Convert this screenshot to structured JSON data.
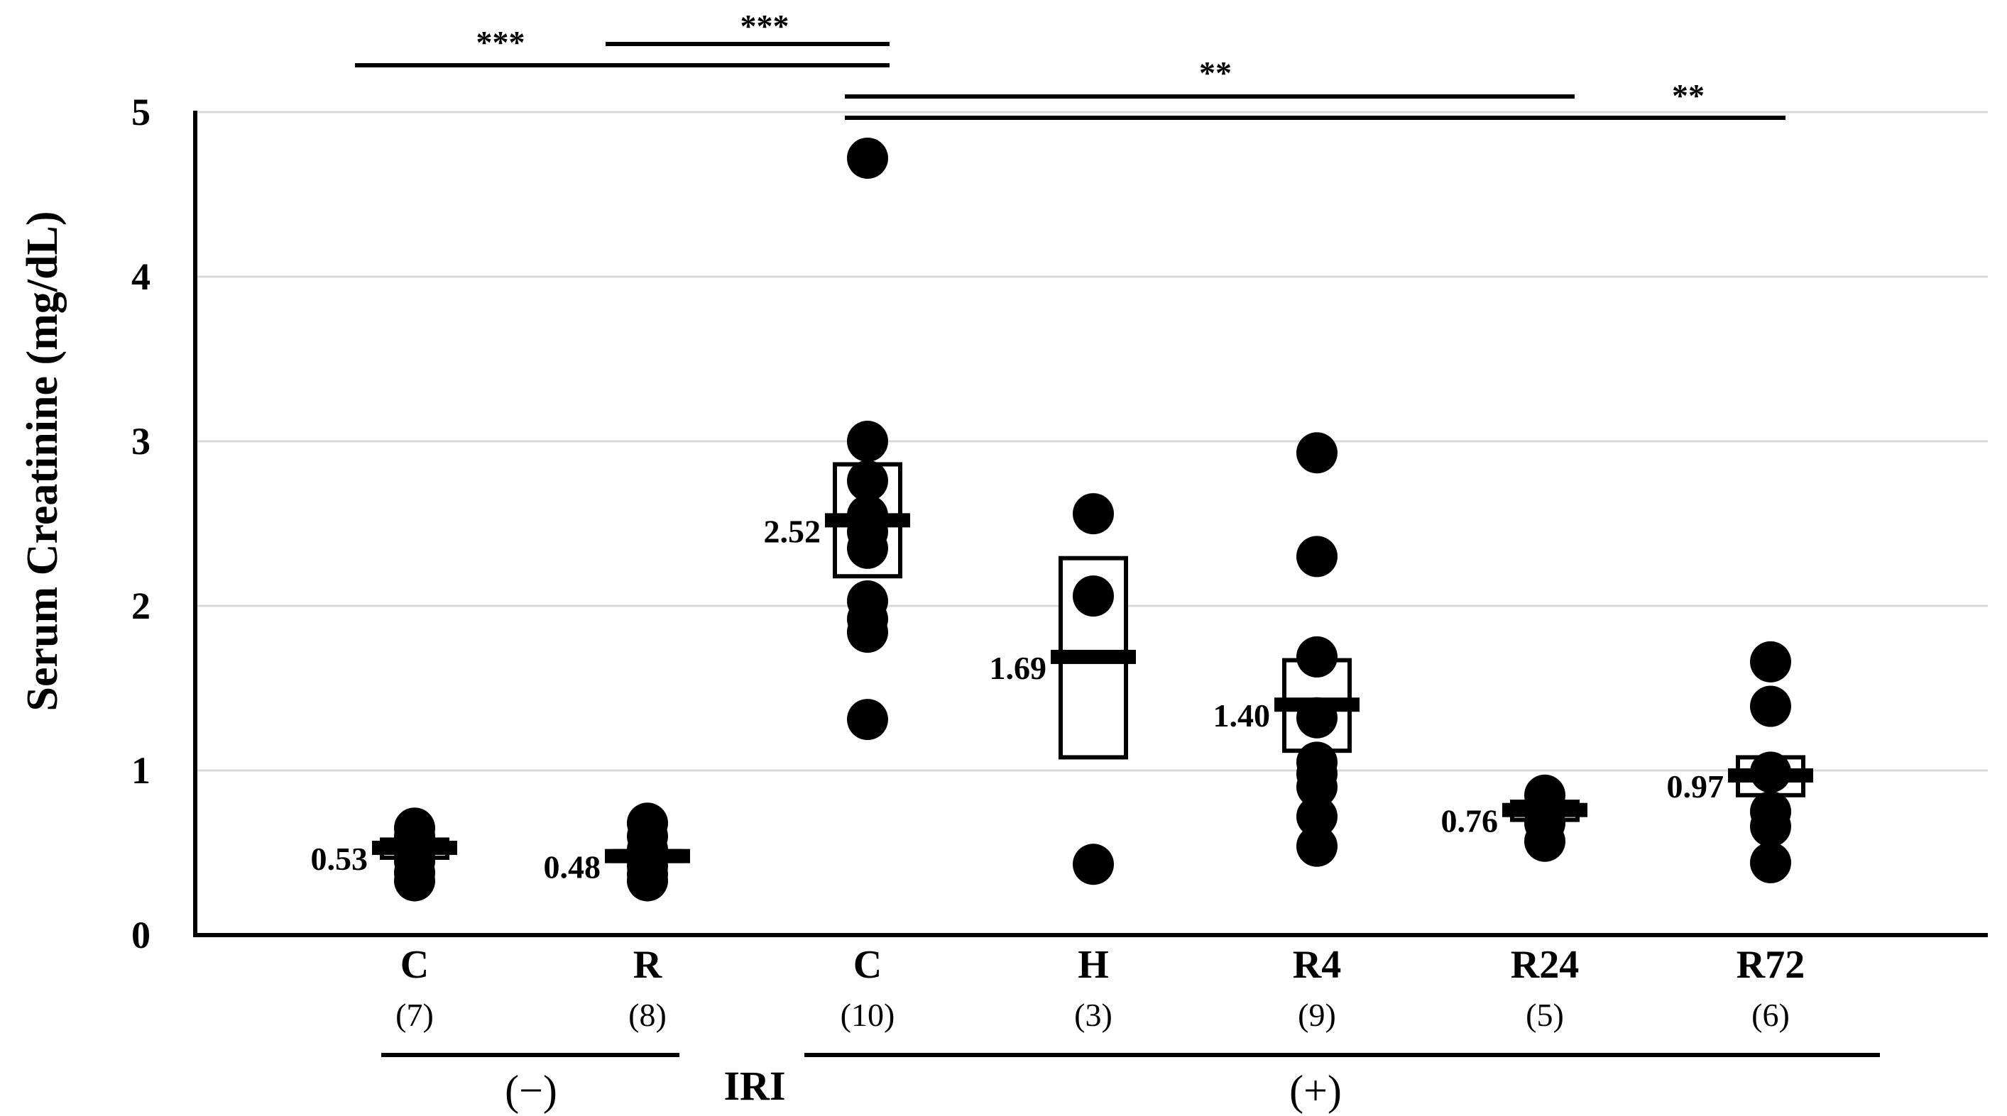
{
  "chart_data": {
    "type": "scatter",
    "title": "",
    "ylabel": "Serum Creatinine (mg/dL)",
    "xlabel": "IRI",
    "ylim": [
      0,
      5
    ],
    "yticks": [
      0,
      1,
      2,
      3,
      4,
      5
    ],
    "grid": "horizontal",
    "categories": [
      {
        "label": "C",
        "n": "(7)",
        "mean": 0.53,
        "mean_label": "0.53",
        "box": [
          0.47,
          0.58
        ],
        "points": [
          0.33,
          0.38,
          0.45,
          0.5,
          0.55,
          0.6,
          0.65
        ]
      },
      {
        "label": "R",
        "n": "(8)",
        "mean": 0.48,
        "mean_label": "0.48",
        "box": [
          0.45,
          0.51
        ],
        "points": [
          0.33,
          0.37,
          0.42,
          0.46,
          0.49,
          0.52,
          0.6,
          0.68
        ]
      },
      {
        "label": "C",
        "n": "(10)",
        "mean": 2.52,
        "mean_label": "2.52",
        "box": [
          2.18,
          2.86
        ],
        "points": [
          1.31,
          1.84,
          1.92,
          2.03,
          2.35,
          2.45,
          2.55,
          2.76,
          3.0,
          4.72
        ]
      },
      {
        "label": "H",
        "n": "(3)",
        "mean": 1.69,
        "mean_label": "1.69",
        "box": [
          1.08,
          2.29
        ],
        "points": [
          0.43,
          2.06,
          2.56
        ]
      },
      {
        "label": "R4",
        "n": "(9)",
        "mean": 1.4,
        "mean_label": "1.40",
        "box": [
          1.12,
          1.67
        ],
        "points": [
          0.54,
          0.72,
          0.9,
          0.98,
          1.05,
          1.32,
          1.69,
          2.3,
          2.93
        ]
      },
      {
        "label": "R24",
        "n": "(5)",
        "mean": 0.76,
        "mean_label": "0.76",
        "box": [
          0.7,
          0.81
        ],
        "points": [
          0.57,
          0.68,
          0.75,
          0.8,
          0.85
        ]
      },
      {
        "label": "R72",
        "n": "(6)",
        "mean": 0.97,
        "mean_label": "0.97",
        "box": [
          0.85,
          1.08
        ],
        "points": [
          0.44,
          0.66,
          0.75,
          0.99,
          1.39,
          1.66
        ]
      }
    ],
    "groups": [
      {
        "label": "(−)",
        "from": 0,
        "to": 1
      },
      {
        "label": "(+)",
        "from": 2,
        "to": 6
      }
    ],
    "significance": [
      {
        "from": 0,
        "to": 2,
        "label": "***"
      },
      {
        "from": 1,
        "to": 2,
        "label": "***"
      },
      {
        "from": 2,
        "to": 5,
        "label": "**"
      },
      {
        "from": 2,
        "to": 6,
        "label": "**"
      }
    ]
  }
}
